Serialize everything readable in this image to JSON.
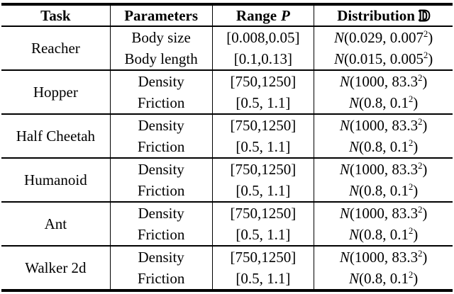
{
  "page": {
    "background": "#ffffff",
    "text_color": "#000000",
    "rule_color": "#000000"
  },
  "table": {
    "headers": {
      "task": "Task",
      "parameters": "Parameters",
      "range_label": "Range",
      "range_symbol": "P",
      "distribution_label": "Distribution",
      "distribution_symbol": "D"
    },
    "fmt": {
      "normal_symbol": "N",
      "open_paren": "(",
      "separator": ", ",
      "exponent": "2",
      "close_paren": ")"
    },
    "groups": [
      {
        "task": "Reacher",
        "rows": [
          {
            "parameter": "Body size",
            "range": "[0.008,0.05]",
            "mean": "0.029",
            "std": "0.007"
          },
          {
            "parameter": "Body length",
            "range": "[0.1,0.13]",
            "mean": "0.015",
            "std": "0.005"
          }
        ]
      },
      {
        "task": "Hopper",
        "rows": [
          {
            "parameter": "Density",
            "range": "[750,1250]",
            "mean": "1000",
            "std": "83.3"
          },
          {
            "parameter": "Friction",
            "range": "[0.5, 1.1]",
            "mean": "0.8",
            "std": "0.1"
          }
        ]
      },
      {
        "task": "Half Cheetah",
        "rows": [
          {
            "parameter": "Density",
            "range": "[750,1250]",
            "mean": "1000",
            "std": "83.3"
          },
          {
            "parameter": "Friction",
            "range": "[0.5, 1.1]",
            "mean": "0.8",
            "std": "0.1"
          }
        ]
      },
      {
        "task": "Humanoid",
        "rows": [
          {
            "parameter": "Density",
            "range": "[750,1250]",
            "mean": "1000",
            "std": "83.3"
          },
          {
            "parameter": "Friction",
            "range": "[0.5, 1.1]",
            "mean": "0.8",
            "std": "0.1"
          }
        ]
      },
      {
        "task": "Ant",
        "rows": [
          {
            "parameter": "Density",
            "range": "[750,1250]",
            "mean": "1000",
            "std": "83.3"
          },
          {
            "parameter": "Friction",
            "range": "[0.5, 1.1]",
            "mean": "0.8",
            "std": "0.1"
          }
        ]
      },
      {
        "task": "Walker 2d",
        "rows": [
          {
            "parameter": "Density",
            "range": "[750,1250]",
            "mean": "1000",
            "std": "83.3"
          },
          {
            "parameter": "Friction",
            "range": "[0.5, 1.1]",
            "mean": "0.8",
            "std": "0.1"
          }
        ]
      }
    ]
  }
}
